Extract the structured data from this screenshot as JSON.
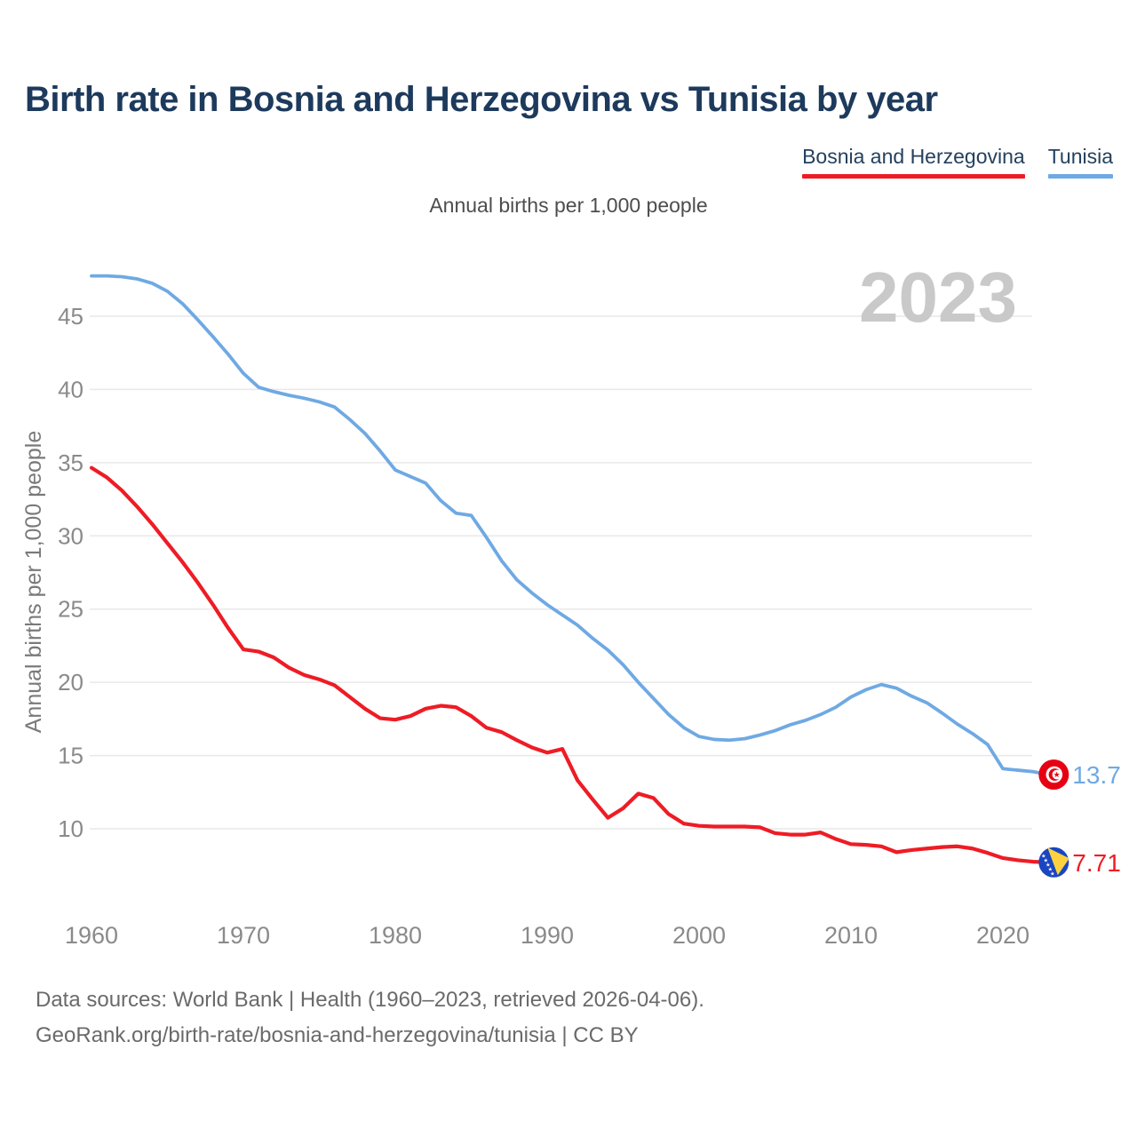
{
  "title": "Birth rate in Bosnia and Herzegovina vs Tunisia by year",
  "subtitle": "Annual births per 1,000 people",
  "watermark": "2023",
  "legend": {
    "items": [
      {
        "label": "Bosnia and Herzegovina",
        "color": "#ee1c25"
      },
      {
        "label": "Tunisia",
        "color": "#6fa9e3"
      }
    ]
  },
  "footer": {
    "line1": "Data sources: World Bank | Health (1960–2023, retrieved 2026-04-06).",
    "line2": "GeoRank.org/birth-rate/bosnia-and-herzegovina/tunisia | CC BY"
  },
  "chart_data": {
    "type": "line",
    "title": "Birth rate in Bosnia and Herzegovina vs Tunisia by year",
    "subtitle": "Annual births per 1,000 people",
    "xlabel": "",
    "ylabel": "Annual births per 1,000 people",
    "grid": true,
    "legend_position": "top-right",
    "xlim": [
      1960,
      2023
    ],
    "ylim": [
      7,
      48.5
    ],
    "xticks": [
      1960,
      1970,
      1980,
      1990,
      2000,
      2010,
      2020
    ],
    "yticks": [
      10,
      15,
      20,
      25,
      30,
      35,
      40,
      45
    ],
    "x": [
      1960,
      1961,
      1962,
      1963,
      1964,
      1965,
      1966,
      1967,
      1968,
      1969,
      1970,
      1971,
      1972,
      1973,
      1974,
      1975,
      1976,
      1977,
      1978,
      1979,
      1980,
      1981,
      1982,
      1983,
      1984,
      1985,
      1986,
      1987,
      1988,
      1989,
      1990,
      1991,
      1992,
      1993,
      1994,
      1995,
      1996,
      1997,
      1998,
      1999,
      2000,
      2001,
      2002,
      2003,
      2004,
      2005,
      2006,
      2007,
      2008,
      2009,
      2010,
      2011,
      2012,
      2013,
      2014,
      2015,
      2016,
      2017,
      2018,
      2019,
      2020,
      2021,
      2022,
      2023
    ],
    "series": [
      {
        "id": "tunisia",
        "name": "Tunisia",
        "color": "#6fa9e3",
        "flag": "tunisia",
        "end_label": "13.7",
        "values": [
          47.75,
          47.75,
          47.7,
          47.55,
          47.25,
          46.7,
          45.85,
          44.75,
          43.6,
          42.4,
          41.1,
          40.15,
          39.85,
          39.6,
          39.4,
          39.15,
          38.8,
          37.95,
          37.0,
          35.8,
          34.5,
          34.05,
          33.6,
          32.4,
          31.55,
          31.4,
          29.9,
          28.3,
          27.0,
          26.1,
          25.3,
          24.6,
          23.9,
          23.0,
          22.2,
          21.2,
          20.0,
          18.9,
          17.8,
          16.9,
          16.3,
          16.1,
          16.05,
          16.15,
          16.4,
          16.7,
          17.1,
          17.4,
          17.8,
          18.3,
          19.0,
          19.5,
          19.85,
          19.6,
          19.05,
          18.6,
          17.9,
          17.15,
          16.5,
          15.75,
          14.1,
          14.0,
          13.9,
          13.7
        ]
      },
      {
        "id": "bosnia",
        "name": "Bosnia and Herzegovina",
        "color": "#ee1c25",
        "flag": "bosnia",
        "end_label": "7.71",
        "values": [
          34.65,
          34.0,
          33.1,
          32.0,
          30.8,
          29.5,
          28.2,
          26.8,
          25.3,
          23.7,
          22.25,
          22.1,
          21.7,
          21.0,
          20.5,
          20.2,
          19.8,
          19.0,
          18.2,
          17.55,
          17.45,
          17.7,
          18.2,
          18.4,
          18.3,
          17.7,
          16.9,
          16.6,
          16.05,
          15.55,
          15.2,
          15.45,
          13.3,
          12.0,
          10.75,
          11.4,
          12.4,
          12.1,
          11.0,
          10.35,
          10.2,
          10.15,
          10.15,
          10.15,
          10.1,
          9.7,
          9.6,
          9.6,
          9.75,
          9.3,
          8.95,
          8.9,
          8.8,
          8.4,
          8.55,
          8.65,
          8.75,
          8.8,
          8.65,
          8.35,
          8.0,
          7.85,
          7.75,
          7.71
        ]
      }
    ]
  }
}
